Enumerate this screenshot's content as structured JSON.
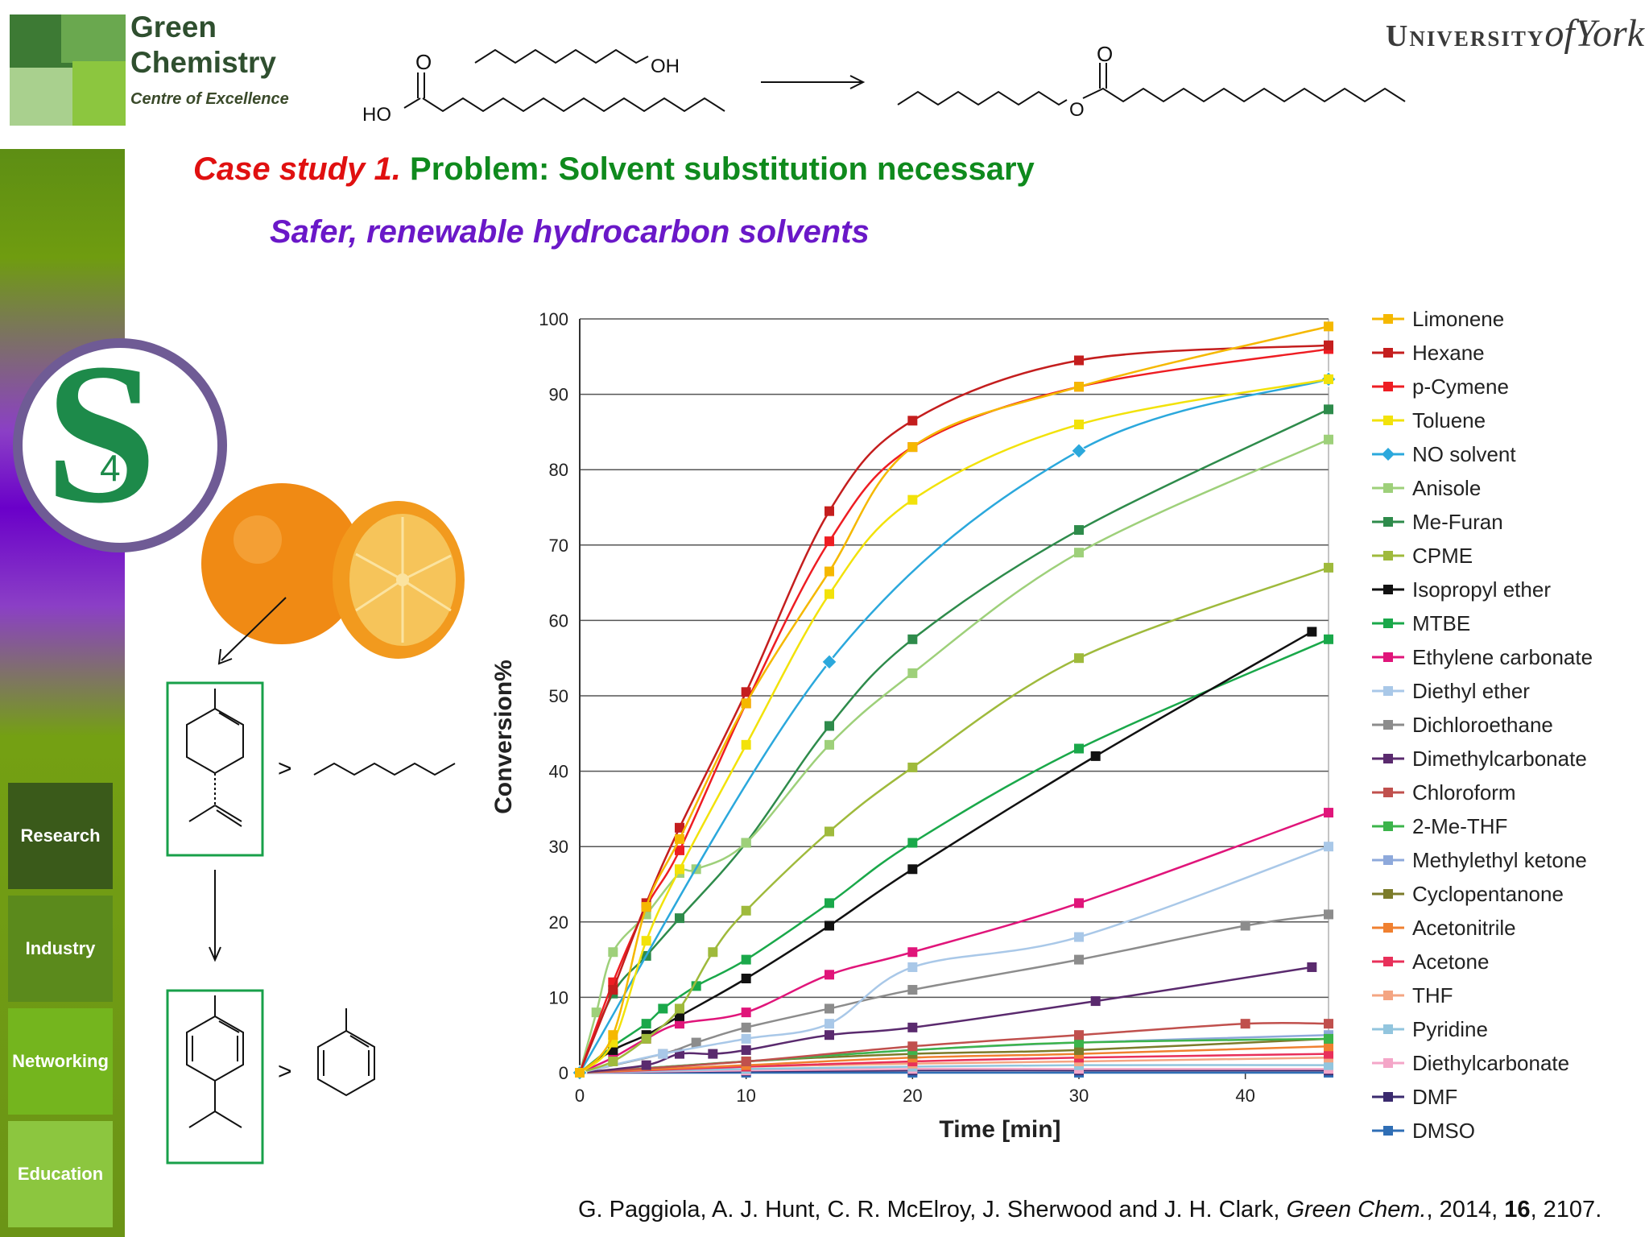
{
  "logo": {
    "line1": "Green",
    "line2": "Chemistry",
    "sub": "Centre of Excellence"
  },
  "university": {
    "prefix": "University",
    "of": "of",
    "name": "York"
  },
  "reaction": {
    "ho": "HO",
    "oh": "OH",
    "o1": "O",
    "o2": "O",
    "o3": "O"
  },
  "heading": {
    "case": "Case study 1.",
    "problem": "Problem: Solvent substitution necessary",
    "subtitle": "Safer, renewable hydrocarbon solvents"
  },
  "sidebar": {
    "logo_glyph": "S",
    "logo_sub": "4",
    "items": [
      {
        "label": "Research",
        "color": "#3a5a1a"
      },
      {
        "label": "Industry",
        "color": "#5b8a1c"
      },
      {
        "label": "Networking",
        "color": "#74b51e"
      },
      {
        "label": "Education",
        "color": "#8cc63f"
      }
    ]
  },
  "scheme": {
    "gt1": ">",
    "gt2": ">"
  },
  "citation": {
    "authors": "G. Paggiola, A. J. Hunt, C. R. McElroy, J. Sherwood and J. H. Clark, ",
    "journal": "Green Chem.",
    "year": ", 2014, ",
    "volume": "16",
    "pages": ", 2107."
  },
  "chart_data": {
    "type": "line",
    "xlabel": "Time [min]",
    "ylabel": "Conversion%",
    "xlim": [
      0,
      45
    ],
    "ylim": [
      0,
      100
    ],
    "xticks": [
      0,
      10,
      20,
      30,
      40
    ],
    "yticks": [
      0,
      10,
      20,
      30,
      40,
      50,
      60,
      70,
      80,
      90,
      100
    ],
    "grid": "horizontal",
    "legend_position": "right",
    "series": [
      {
        "name": "Limonene",
        "color": "#f5b800",
        "marker": "square",
        "points": [
          [
            0,
            0
          ],
          [
            2,
            5
          ],
          [
            4,
            22
          ],
          [
            6,
            31
          ],
          [
            10,
            49
          ],
          [
            15,
            66.5
          ],
          [
            20,
            83
          ],
          [
            30,
            91
          ],
          [
            45,
            99
          ]
        ]
      },
      {
        "name": "Hexane",
        "color": "#c41e1e",
        "marker": "square",
        "points": [
          [
            0,
            0
          ],
          [
            2,
            11
          ],
          [
            4,
            22.5
          ],
          [
            6,
            32.5
          ],
          [
            10,
            50.5
          ],
          [
            15,
            74.5
          ],
          [
            20,
            86.5
          ],
          [
            30,
            94.5
          ],
          [
            45,
            96.5
          ]
        ]
      },
      {
        "name": "p-Cymene",
        "color": "#ee1d23",
        "marker": "square",
        "points": [
          [
            0,
            0
          ],
          [
            2,
            12
          ],
          [
            4,
            22
          ],
          [
            6,
            29.5
          ],
          [
            10,
            49
          ],
          [
            15,
            70.5
          ],
          [
            20,
            83
          ],
          [
            30,
            91
          ],
          [
            45,
            96
          ]
        ]
      },
      {
        "name": "Toluene",
        "color": "#f2e20a",
        "marker": "square",
        "points": [
          [
            0,
            0
          ],
          [
            2,
            4
          ],
          [
            4,
            17.5
          ],
          [
            6,
            27
          ],
          [
            10,
            43.5
          ],
          [
            15,
            63.5
          ],
          [
            20,
            76
          ],
          [
            30,
            86
          ],
          [
            45,
            92
          ]
        ]
      },
      {
        "name": "NO solvent",
        "color": "#2ba8dc",
        "marker": "diamond",
        "points": [
          [
            0,
            0
          ],
          [
            15,
            54.5
          ],
          [
            30,
            82.5
          ],
          [
            45,
            92
          ]
        ]
      },
      {
        "name": "Anisole",
        "color": "#9ed07a",
        "marker": "square",
        "points": [
          [
            0,
            0
          ],
          [
            1,
            8
          ],
          [
            2,
            16
          ],
          [
            4,
            21
          ],
          [
            6,
            26.5
          ],
          [
            7,
            27
          ],
          [
            10,
            30.5
          ],
          [
            15,
            43.5
          ],
          [
            20,
            53
          ],
          [
            30,
            69
          ],
          [
            45,
            84
          ]
        ]
      },
      {
        "name": "Me-Furan",
        "color": "#2e8b4b",
        "marker": "square",
        "points": [
          [
            0,
            0
          ],
          [
            2,
            10.5
          ],
          [
            4,
            15.5
          ],
          [
            6,
            20.5
          ],
          [
            10,
            30.5
          ],
          [
            15,
            46
          ],
          [
            20,
            57.5
          ],
          [
            30,
            72
          ],
          [
            45,
            88
          ]
        ]
      },
      {
        "name": "CPME",
        "color": "#9fba3c",
        "marker": "square",
        "points": [
          [
            0,
            0
          ],
          [
            2,
            1.5
          ],
          [
            4,
            4.5
          ],
          [
            6,
            8.5
          ],
          [
            8,
            16
          ],
          [
            10,
            21.5
          ],
          [
            15,
            32
          ],
          [
            20,
            40.5
          ],
          [
            30,
            55
          ],
          [
            45,
            67
          ]
        ]
      },
      {
        "name": "Isopropyl ether",
        "color": "#111111",
        "marker": "square",
        "points": [
          [
            0,
            0
          ],
          [
            2,
            3
          ],
          [
            4,
            5
          ],
          [
            6,
            7.5
          ],
          [
            10,
            12.5
          ],
          [
            15,
            19.5
          ],
          [
            20,
            27
          ],
          [
            31,
            42
          ],
          [
            44,
            58.5
          ]
        ]
      },
      {
        "name": "MTBE",
        "color": "#1aa84a",
        "marker": "square",
        "points": [
          [
            0,
            0
          ],
          [
            2,
            3.5
          ],
          [
            4,
            6.5
          ],
          [
            5,
            8.5
          ],
          [
            7,
            11.5
          ],
          [
            10,
            15
          ],
          [
            15,
            22.5
          ],
          [
            20,
            30.5
          ],
          [
            30,
            43
          ],
          [
            45,
            57.5
          ]
        ]
      },
      {
        "name": "Ethylene carbonate",
        "color": "#e0157a",
        "marker": "square",
        "points": [
          [
            0,
            0
          ],
          [
            2,
            2
          ],
          [
            4,
            4.5
          ],
          [
            6,
            6.5
          ],
          [
            10,
            8
          ],
          [
            15,
            13
          ],
          [
            20,
            16
          ],
          [
            30,
            22.5
          ],
          [
            45,
            34.5
          ]
        ]
      },
      {
        "name": "Diethyl ether",
        "color": "#a9c8e8",
        "marker": "square",
        "points": [
          [
            0,
            0
          ],
          [
            5,
            2.5
          ],
          [
            10,
            4.5
          ],
          [
            15,
            6.5
          ],
          [
            20,
            14
          ],
          [
            30,
            18
          ],
          [
            45,
            30
          ]
        ]
      },
      {
        "name": "Dichloroethane",
        "color": "#8c8c8c",
        "marker": "square",
        "points": [
          [
            0,
            0
          ],
          [
            5,
            2.5
          ],
          [
            7,
            4
          ],
          [
            10,
            6
          ],
          [
            15,
            8.5
          ],
          [
            20,
            11
          ],
          [
            30,
            15
          ],
          [
            40,
            19.5
          ],
          [
            45,
            21
          ]
        ]
      },
      {
        "name": "Dimethylcarbonate",
        "color": "#5a2a6e",
        "marker": "square",
        "points": [
          [
            0,
            0
          ],
          [
            4,
            1
          ],
          [
            6,
            2.5
          ],
          [
            8,
            2.5
          ],
          [
            10,
            3
          ],
          [
            15,
            5
          ],
          [
            20,
            6
          ],
          [
            31,
            9.5
          ],
          [
            44,
            14
          ]
        ]
      },
      {
        "name": "Chloroform",
        "color": "#c0504d",
        "marker": "square",
        "points": [
          [
            0,
            0
          ],
          [
            10,
            1.5
          ],
          [
            20,
            3.5
          ],
          [
            30,
            5
          ],
          [
            40,
            6.5
          ],
          [
            45,
            6.5
          ]
        ]
      },
      {
        "name": "2-Me-THF",
        "color": "#3cb44b",
        "marker": "square",
        "points": [
          [
            0,
            0
          ],
          [
            10,
            1.5
          ],
          [
            20,
            3
          ],
          [
            30,
            4
          ],
          [
            45,
            4.5
          ]
        ]
      },
      {
        "name": "Methylethyl ketone",
        "color": "#8ea9db",
        "marker": "square",
        "points": [
          [
            0,
            0
          ],
          [
            10,
            1.5
          ],
          [
            20,
            3
          ],
          [
            30,
            4
          ],
          [
            45,
            5
          ]
        ]
      },
      {
        "name": "Cyclopentanone",
        "color": "#7b7b2a",
        "marker": "square",
        "points": [
          [
            0,
            0
          ],
          [
            10,
            1.5
          ],
          [
            20,
            2.5
          ],
          [
            30,
            3
          ],
          [
            45,
            4.5
          ]
        ]
      },
      {
        "name": "Acetonitrile",
        "color": "#f08030",
        "marker": "square",
        "points": [
          [
            0,
            0
          ],
          [
            10,
            1
          ],
          [
            20,
            2
          ],
          [
            30,
            2.5
          ],
          [
            45,
            3.5
          ]
        ]
      },
      {
        "name": "Acetone",
        "color": "#e8305a",
        "marker": "square",
        "points": [
          [
            0,
            0
          ],
          [
            10,
            0.8
          ],
          [
            20,
            1.5
          ],
          [
            30,
            2
          ],
          [
            45,
            2.5
          ]
        ]
      },
      {
        "name": "THF",
        "color": "#f4a582",
        "marker": "square",
        "points": [
          [
            0,
            0
          ],
          [
            10,
            0.8
          ],
          [
            20,
            1.2
          ],
          [
            30,
            1.5
          ],
          [
            45,
            2
          ]
        ]
      },
      {
        "name": "Pyridine",
        "color": "#92c5de",
        "marker": "square",
        "points": [
          [
            0,
            0
          ],
          [
            10,
            0.5
          ],
          [
            20,
            0.8
          ],
          [
            30,
            1
          ],
          [
            45,
            1
          ]
        ]
      },
      {
        "name": "Diethylcarbonate",
        "color": "#f4a6c8",
        "marker": "square",
        "points": [
          [
            0,
            0
          ],
          [
            10,
            0.3
          ],
          [
            20,
            0.5
          ],
          [
            30,
            0.5
          ],
          [
            45,
            0.5
          ]
        ]
      },
      {
        "name": "DMF",
        "color": "#3a2a6e",
        "marker": "square",
        "points": [
          [
            0,
            0
          ],
          [
            10,
            0.2
          ],
          [
            20,
            0.3
          ],
          [
            30,
            0.3
          ],
          [
            45,
            0.3
          ]
        ]
      },
      {
        "name": "DMSO",
        "color": "#2f6eb5",
        "marker": "square",
        "points": [
          [
            0,
            0
          ],
          [
            10,
            0
          ],
          [
            20,
            0
          ],
          [
            30,
            0
          ],
          [
            45,
            0
          ]
        ]
      }
    ]
  }
}
